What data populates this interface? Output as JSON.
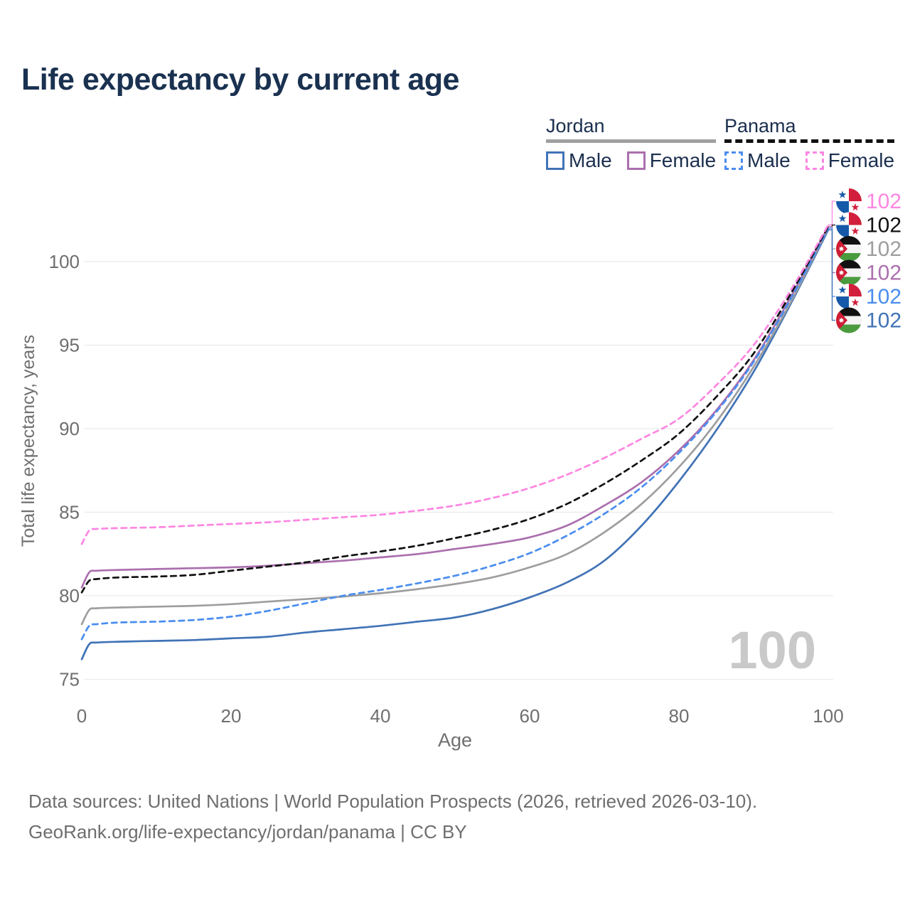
{
  "title": "Life expectancy by current age",
  "legend": {
    "groups": [
      {
        "id": "jordan",
        "label": "Jordan",
        "underline_style": "solid",
        "underline_color": "#a0a0a0",
        "items": [
          {
            "label": "Male",
            "color": "#4173b6",
            "dashed": false
          },
          {
            "label": "Female",
            "color": "#ab6fae",
            "dashed": false
          }
        ]
      },
      {
        "id": "panama",
        "label": "Panama",
        "underline_style": "dashed",
        "underline_color": "#111111",
        "items": [
          {
            "label": "Male",
            "color": "#4a8def",
            "dashed": true
          },
          {
            "label": "Female",
            "color": "#fd86e1",
            "dashed": true
          }
        ]
      }
    ]
  },
  "footer": {
    "line1": "Data sources: United Nations | World Population Prospects (2026, retrieved 2026-03-10).",
    "line2": "GeoRank.org/life-expectancy/jordan/panama | CC BY"
  },
  "chart_data": {
    "type": "line",
    "title": "Life expectancy by current age",
    "xlabel": "Age",
    "ylabel": "Total life expectancy, years",
    "xlim": [
      0,
      100
    ],
    "ylim": [
      75,
      102.5
    ],
    "x_ticks": [
      0,
      20,
      40,
      60,
      80,
      100
    ],
    "y_ticks": [
      75,
      80,
      85,
      90,
      95,
      100
    ],
    "grid": true,
    "legend_position": "top-right",
    "age_counter": "100",
    "x": [
      0,
      1,
      2,
      5,
      10,
      15,
      20,
      25,
      30,
      35,
      40,
      45,
      50,
      55,
      60,
      65,
      70,
      75,
      80,
      85,
      90,
      95,
      100
    ],
    "series": [
      {
        "id": "jordan-male",
        "name": "Jordan Male",
        "color": "#4173b6",
        "dashed": false,
        "values": [
          76.2,
          77.1,
          77.2,
          77.25,
          77.3,
          77.35,
          77.45,
          77.55,
          77.8,
          78.0,
          78.2,
          78.45,
          78.7,
          79.2,
          79.9,
          80.8,
          82.1,
          84.2,
          86.85,
          89.9,
          93.4,
          97.5,
          101.9
        ]
      },
      {
        "id": "jordan",
        "name": "Jordan",
        "color": "#9e9e9e",
        "dashed": false,
        "values": [
          78.3,
          79.15,
          79.25,
          79.3,
          79.35,
          79.4,
          79.5,
          79.65,
          79.8,
          79.95,
          80.15,
          80.4,
          80.7,
          81.1,
          81.7,
          82.5,
          83.8,
          85.5,
          87.7,
          90.4,
          93.7,
          97.6,
          102.0
        ]
      },
      {
        "id": "jordan-female",
        "name": "Jordan Female",
        "color": "#ab6fae",
        "dashed": false,
        "values": [
          80.5,
          81.4,
          81.5,
          81.55,
          81.6,
          81.65,
          81.7,
          81.8,
          81.95,
          82.1,
          82.3,
          82.5,
          82.8,
          83.1,
          83.5,
          84.2,
          85.4,
          86.8,
          88.7,
          91.1,
          94.1,
          97.9,
          102.1
        ]
      },
      {
        "id": "panama-male",
        "name": "Panama Male",
        "color": "#4a8def",
        "dashed": true,
        "values": [
          77.4,
          78.2,
          78.3,
          78.4,
          78.45,
          78.55,
          78.75,
          79.1,
          79.55,
          80.0,
          80.35,
          80.75,
          81.2,
          81.8,
          82.55,
          83.6,
          84.9,
          86.5,
          88.55,
          91.0,
          94.0,
          97.8,
          102.0
        ]
      },
      {
        "id": "panama",
        "name": "Panama",
        "color": "#111111",
        "dashed": true,
        "values": [
          80.2,
          80.9,
          81.0,
          81.1,
          81.15,
          81.25,
          81.5,
          81.75,
          82.0,
          82.35,
          82.65,
          83.0,
          83.45,
          83.95,
          84.6,
          85.5,
          86.7,
          88.1,
          89.7,
          91.9,
          94.5,
          98.1,
          102.1
        ]
      },
      {
        "id": "panama-female",
        "name": "Panama Female",
        "color": "#fd86e1",
        "dashed": true,
        "values": [
          83.1,
          83.9,
          84.0,
          84.05,
          84.1,
          84.2,
          84.3,
          84.4,
          84.55,
          84.7,
          84.85,
          85.1,
          85.4,
          85.85,
          86.45,
          87.25,
          88.25,
          89.4,
          90.6,
          92.6,
          95.0,
          98.3,
          102.2
        ]
      }
    ],
    "end_labels": [
      {
        "series_id": "panama-female",
        "flag": "panama",
        "value": "102",
        "color": "#fd86e1"
      },
      {
        "series_id": "panama",
        "flag": "panama",
        "value": "102",
        "color": "#111111"
      },
      {
        "series_id": "jordan",
        "flag": "jordan",
        "value": "102",
        "color": "#9e9e9e"
      },
      {
        "series_id": "jordan-female",
        "flag": "jordan",
        "value": "102",
        "color": "#ab6fae"
      },
      {
        "series_id": "panama-male",
        "flag": "panama",
        "value": "102",
        "color": "#4a8def"
      },
      {
        "series_id": "jordan-male",
        "flag": "jordan",
        "value": "102",
        "color": "#4173b6"
      }
    ]
  }
}
